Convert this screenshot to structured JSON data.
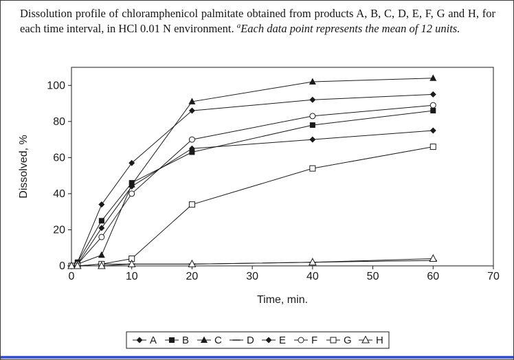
{
  "figure": {
    "caption_main": "Dissolution profile of chloramphenicol palmitate obtained from products A, B, C, D, E, F, G and H, for each time interval, in HCl 0.01 N environment.",
    "caption_footnote_marker": "a",
    "caption_footnote": "Each data point represents the mean of 12 units."
  },
  "colors": {
    "ink": "#1a1a1a",
    "rule_blue": "#4059c8"
  },
  "chart_data": {
    "type": "line",
    "title": "",
    "xlabel": "Time, min.",
    "ylabel": "Dissolved, %",
    "xlim": [
      0,
      70
    ],
    "ylim": [
      0,
      110
    ],
    "x_ticks": [
      0,
      10,
      20,
      30,
      40,
      50,
      60,
      70
    ],
    "y_ticks": [
      0,
      20,
      40,
      60,
      80,
      100
    ],
    "grid": false,
    "legend_position": "bottom",
    "x": [
      0,
      1,
      5,
      10,
      20,
      40,
      60
    ],
    "series": [
      {
        "name": "A",
        "marker": "diamond-filled",
        "values": [
          0,
          2,
          34,
          57,
          86,
          92,
          95
        ]
      },
      {
        "name": "B",
        "marker": "square-filled",
        "values": [
          0,
          2,
          25,
          46,
          63,
          78,
          86
        ]
      },
      {
        "name": "C",
        "marker": "triangle-filled",
        "values": [
          0,
          1,
          6,
          45,
          91,
          102,
          104
        ]
      },
      {
        "name": "D",
        "marker": "dash",
        "values": [
          0,
          0,
          1,
          1,
          1,
          2,
          3
        ]
      },
      {
        "name": "E",
        "marker": "diamond-filled",
        "values": [
          0,
          1,
          21,
          44,
          65,
          70,
          75
        ]
      },
      {
        "name": "F",
        "marker": "circle-open",
        "values": [
          0,
          1,
          16,
          40,
          70,
          83,
          89
        ]
      },
      {
        "name": "G",
        "marker": "square-open",
        "values": [
          0,
          0,
          1,
          4,
          34,
          54,
          66
        ]
      },
      {
        "name": "H",
        "marker": "triangle-open",
        "values": [
          0,
          0,
          0,
          1,
          1,
          2,
          4
        ]
      }
    ]
  }
}
